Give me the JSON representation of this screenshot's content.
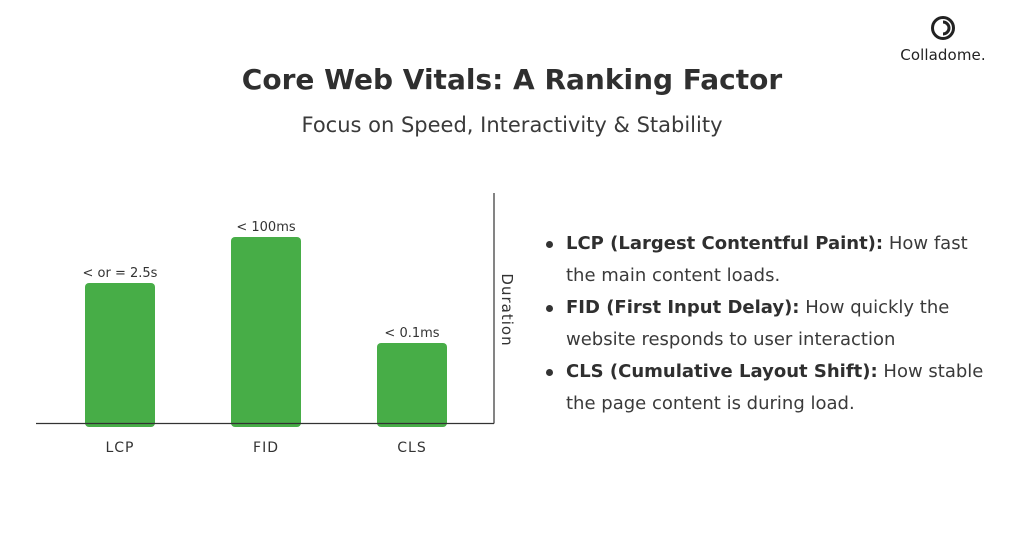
{
  "header": {
    "title": "Core Web Vitals: A Ranking Factor",
    "subtitle": "Focus on Speed, Interactivity & Stability"
  },
  "brand": {
    "name": "Colladome.",
    "logo_icon": "ring-logo-icon"
  },
  "colors": {
    "bar": "#47ad47",
    "axis": "#333333",
    "text": "#333333"
  },
  "chart_data": {
    "type": "bar",
    "title": "",
    "xlabel": "",
    "ylabel": "Duration",
    "categories": [
      "LCP",
      "FID",
      "CLS"
    ],
    "values": [
      140,
      186,
      80
    ],
    "data_labels": [
      "< or = 2.5s",
      "< 100ms",
      "< 0.1ms"
    ],
    "ylim": [
      0,
      230
    ],
    "grid": false,
    "legend": "none"
  },
  "bullets": [
    {
      "term": "LCP (Largest Contentful Paint):",
      "text": "How fast the main content loads."
    },
    {
      "term": "FID (First Input Delay):",
      "text": "How quickly the website responds to user interaction"
    },
    {
      "term": "CLS (Cumulative Layout Shift):",
      "text": "How stable the page content is during load."
    }
  ]
}
